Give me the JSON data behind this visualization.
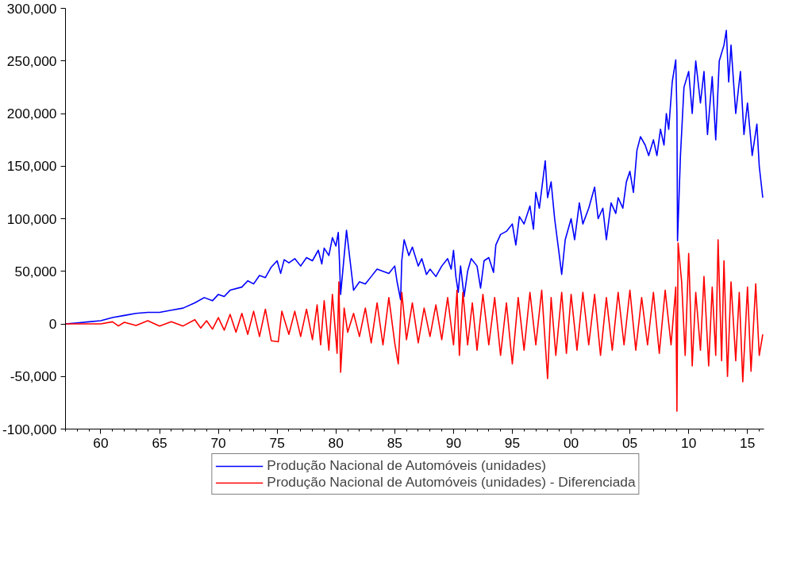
{
  "chart_data": {
    "type": "line",
    "xlim": [
      1957,
      2016.4
    ],
    "ylim": [
      -100000,
      300000
    ],
    "xticks": [
      {
        "value": 1960,
        "label": "60"
      },
      {
        "value": 1965,
        "label": "65"
      },
      {
        "value": 1970,
        "label": "70"
      },
      {
        "value": 1975,
        "label": "75"
      },
      {
        "value": 1980,
        "label": "80"
      },
      {
        "value": 1985,
        "label": "85"
      },
      {
        "value": 1990,
        "label": "90"
      },
      {
        "value": 1995,
        "label": "95"
      },
      {
        "value": 2000,
        "label": "00"
      },
      {
        "value": 2005,
        "label": "05"
      },
      {
        "value": 2010,
        "label": "10"
      },
      {
        "value": 2015,
        "label": "15"
      }
    ],
    "yticks": [
      {
        "value": -100000,
        "label": "-100,000"
      },
      {
        "value": -50000,
        "label": "-50,000"
      },
      {
        "value": 0,
        "label": "0"
      },
      {
        "value": 50000,
        "label": "50,000"
      },
      {
        "value": 100000,
        "label": "100,000"
      },
      {
        "value": 150000,
        "label": "150,000"
      },
      {
        "value": 200000,
        "label": "200,000"
      },
      {
        "value": 250000,
        "label": "250,000"
      },
      {
        "value": 300000,
        "label": "300,000"
      }
    ],
    "legend": "bottom",
    "series": [
      {
        "name": "Produção Nacional de Automóveis (unidades)",
        "color": "#0000ff",
        "x": [
          1957,
          1958,
          1959,
          1960,
          1961,
          1962,
          1963,
          1964,
          1965,
          1966,
          1967,
          1968,
          1968.8,
          1969.5,
          1970,
          1970.5,
          1971,
          1972,
          1972.5,
          1973,
          1973.5,
          1974,
          1974.5,
          1975,
          1975.3,
          1975.6,
          1976,
          1976.5,
          1977,
          1977.5,
          1978,
          1978.5,
          1978.8,
          1979,
          1979.4,
          1979.7,
          1980,
          1980.2,
          1980.3,
          1980.4,
          1980.9,
          1981.5,
          1982,
          1982.5,
          1983,
          1983.5,
          1984,
          1984.5,
          1985,
          1985.2,
          1985.5,
          1985.6,
          1985.8,
          1986.2,
          1986.5,
          1987,
          1987.3,
          1987.7,
          1988,
          1988.5,
          1989,
          1989.5,
          1989.8,
          1990,
          1990.2,
          1990.4,
          1990.6,
          1990.9,
          1991.2,
          1991.5,
          1992,
          1992.3,
          1992.6,
          1993,
          1993.4,
          1993.6,
          1994,
          1994.5,
          1995,
          1995.3,
          1995.6,
          1996,
          1996.5,
          1996.8,
          1997,
          1997.3,
          1997.8,
          1998,
          1998.3,
          1998.6,
          1999,
          1999.2,
          1999.5,
          2000,
          2000.3,
          2000.7,
          2001,
          2001.5,
          2002,
          2002.3,
          2002.7,
          2003,
          2003.4,
          2003.8,
          2004,
          2004.4,
          2004.7,
          2005,
          2005.3,
          2005.6,
          2005.9,
          2006.3,
          2006.6,
          2007,
          2007.3,
          2007.6,
          2007.9,
          2008.1,
          2008.3,
          2008.6,
          2008.9,
          2009,
          2009.05,
          2009.3,
          2009.6,
          2010,
          2010.3,
          2010.6,
          2011,
          2011.3,
          2011.6,
          2012,
          2012.3,
          2012.6,
          2013,
          2013.2,
          2013.4,
          2013.6,
          2014,
          2014.4,
          2014.7,
          2015,
          2015.4,
          2015.8,
          2016,
          2016.3
        ],
        "values": [
          0,
          1000,
          2000,
          3000,
          6000,
          8000,
          10000,
          11000,
          11000,
          13000,
          15000,
          20000,
          25000,
          22000,
          28000,
          26000,
          32000,
          35000,
          41000,
          38000,
          46000,
          44000,
          54000,
          60000,
          48000,
          61000,
          58000,
          62000,
          55000,
          63000,
          60000,
          70000,
          57000,
          72000,
          65000,
          82000,
          74000,
          87000,
          60000,
          28000,
          89000,
          32000,
          40000,
          38000,
          45000,
          52000,
          50000,
          48000,
          55000,
          40000,
          23000,
          60000,
          80000,
          65000,
          73000,
          55000,
          62000,
          47000,
          52000,
          45000,
          55000,
          62000,
          52000,
          70000,
          45000,
          30000,
          55000,
          26000,
          50000,
          62000,
          55000,
          34000,
          60000,
          63000,
          49000,
          75000,
          85000,
          88000,
          95000,
          75000,
          102000,
          95000,
          112000,
          90000,
          125000,
          110000,
          155000,
          120000,
          135000,
          100000,
          65000,
          47000,
          80000,
          100000,
          80000,
          115000,
          95000,
          110000,
          130000,
          100000,
          110000,
          80000,
          115000,
          105000,
          120000,
          110000,
          135000,
          145000,
          125000,
          165000,
          178000,
          170000,
          160000,
          175000,
          160000,
          185000,
          170000,
          200000,
          185000,
          230000,
          251000,
          200000,
          79000,
          160000,
          225000,
          240000,
          200000,
          250000,
          210000,
          240000,
          180000,
          235000,
          175000,
          250000,
          265000,
          279000,
          230000,
          265000,
          200000,
          240000,
          180000,
          210000,
          160000,
          190000,
          150000,
          120000
        ]
      },
      {
        "name": "Produção Nacional de Automóveis (unidades) - Diferenciada",
        "color": "#ff0000",
        "x": [
          1957,
          1960,
          1961,
          1961.5,
          1962,
          1963,
          1964,
          1965,
          1966,
          1967,
          1968,
          1968.5,
          1969,
          1969.5,
          1970,
          1970.5,
          1971,
          1971.5,
          1972,
          1972.5,
          1973,
          1973.5,
          1974,
          1974.5,
          1975.1,
          1975.4,
          1976,
          1976.5,
          1977,
          1977.5,
          1978,
          1978.4,
          1978.7,
          1979,
          1979.4,
          1979.7,
          1980.1,
          1980.25,
          1980.4,
          1980.7,
          1981,
          1981.5,
          1982,
          1982.5,
          1983,
          1983.5,
          1984,
          1984.5,
          1985,
          1985.3,
          1985.6,
          1986,
          1986.5,
          1987,
          1987.5,
          1988,
          1988.5,
          1989,
          1989.5,
          1990,
          1990.3,
          1990.5,
          1990.8,
          1991.2,
          1991.6,
          1992,
          1992.5,
          1993,
          1993.5,
          1994,
          1994.5,
          1995,
          1995.5,
          1996,
          1996.5,
          1997,
          1997.5,
          1998,
          1998.3,
          1998.7,
          1999.2,
          1999.6,
          2000,
          2000.5,
          2001,
          2001.5,
          2002,
          2002.5,
          2003,
          2003.5,
          2004,
          2004.5,
          2005,
          2005.5,
          2006,
          2006.5,
          2007,
          2007.5,
          2008,
          2008.5,
          2008.9,
          2009.0,
          2009.1,
          2009.4,
          2009.7,
          2010,
          2010.3,
          2010.6,
          2011,
          2011.3,
          2011.7,
          2012,
          2012.3,
          2012.5,
          2012.8,
          2013,
          2013.3,
          2013.6,
          2014,
          2014.3,
          2014.6,
          2015,
          2015.3,
          2015.7,
          2016,
          2016.3
        ],
        "values": [
          0,
          0,
          2000,
          -2000,
          1500,
          -1500,
          3000,
          -2000,
          2000,
          -2000,
          4000,
          -4000,
          3000,
          -5000,
          6000,
          -6000,
          9000,
          -8000,
          10000,
          -10000,
          12000,
          -12000,
          14000,
          -16000,
          -17000,
          12000,
          -10000,
          12000,
          -12000,
          14000,
          -15000,
          18000,
          -20000,
          22000,
          -25000,
          28000,
          -28000,
          40000,
          -46000,
          15000,
          -8000,
          10000,
          -12000,
          15000,
          -18000,
          20000,
          -20000,
          25000,
          -18000,
          -38000,
          30000,
          -15000,
          20000,
          -18000,
          15000,
          -12000,
          18000,
          -15000,
          25000,
          -20000,
          32000,
          -30000,
          30000,
          -20000,
          20000,
          -25000,
          28000,
          -20000,
          25000,
          -30000,
          20000,
          -38000,
          25000,
          -25000,
          30000,
          -20000,
          32000,
          -52000,
          25000,
          -30000,
          30000,
          -28000,
          28000,
          -25000,
          30000,
          -20000,
          28000,
          -30000,
          25000,
          -25000,
          30000,
          -20000,
          32000,
          -25000,
          25000,
          -20000,
          30000,
          -28000,
          32000,
          -20000,
          35000,
          -83000,
          77000,
          40000,
          -30000,
          67000,
          -40000,
          30000,
          -25000,
          45000,
          -40000,
          35000,
          -30000,
          80000,
          -35000,
          60000,
          -50000,
          40000,
          -35000,
          30000,
          -55000,
          35000,
          -45000,
          38000,
          -30000,
          -10000
        ]
      }
    ]
  }
}
